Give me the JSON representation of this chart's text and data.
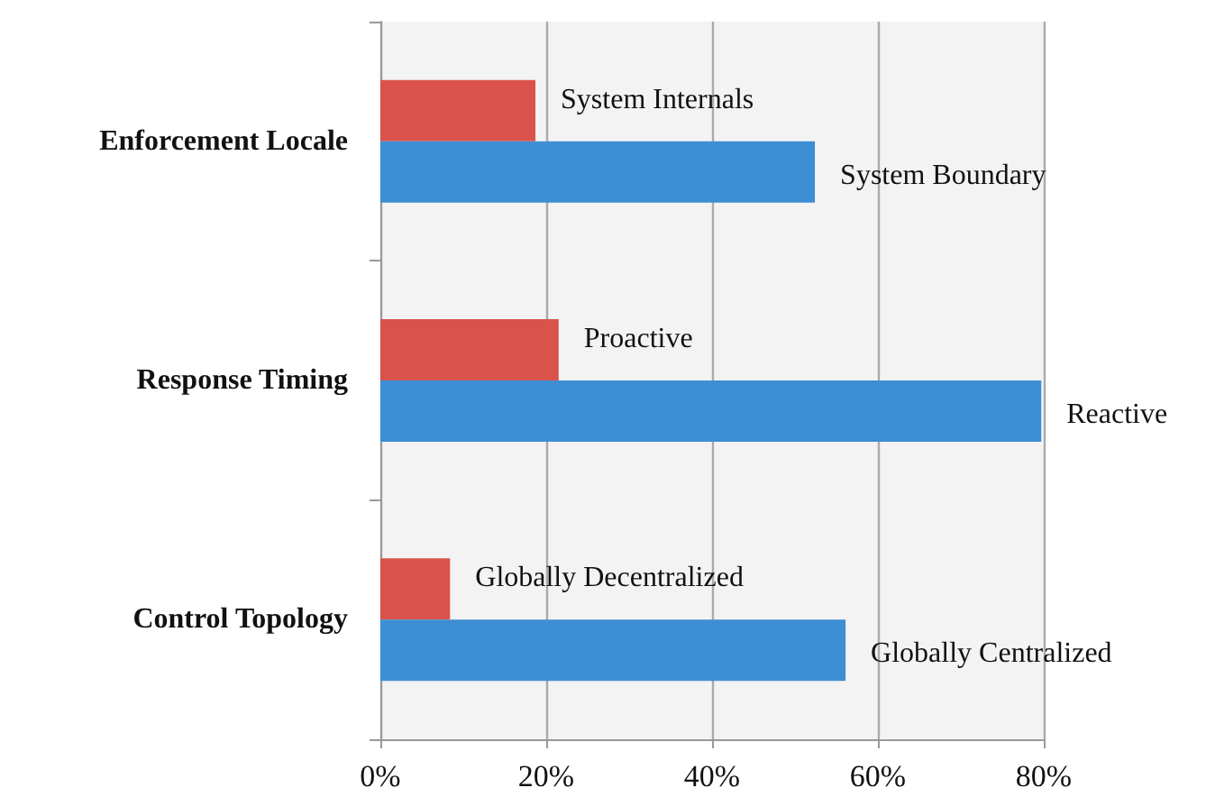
{
  "chart_data": {
    "type": "bar",
    "orientation": "horizontal",
    "categories": [
      "Enforcement Locale",
      "Response Timing",
      "Control Topology"
    ],
    "series": [
      {
        "color": "#d9534c",
        "values": [
          18.7,
          21.5,
          8.4
        ],
        "value_labels": [
          "System Internals",
          "Proactive",
          "Globally Decentralized"
        ]
      },
      {
        "color": "#3e8ed3",
        "values": [
          52.4,
          79.7,
          56.1
        ],
        "value_labels": [
          "System Boundary",
          "Reactive",
          "Globally Centralized"
        ]
      }
    ],
    "xlim": [
      0,
      80
    ],
    "xticks": [
      {
        "value": 0,
        "label": "0%"
      },
      {
        "value": 20,
        "label": "20%"
      },
      {
        "value": 40,
        "label": "40%"
      },
      {
        "value": 60,
        "label": "60%"
      },
      {
        "value": 80,
        "label": "80%"
      }
    ],
    "grid": "x"
  }
}
